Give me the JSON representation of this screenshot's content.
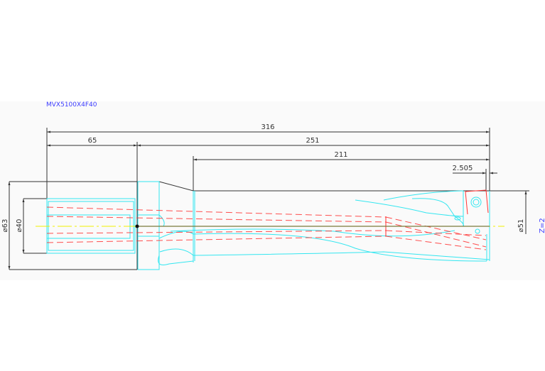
{
  "drawing": {
    "title": "MVX5100X4F40",
    "dimensions": {
      "overall_length": "316",
      "shank_length": "65",
      "body_length": "251",
      "flute_length": "211",
      "offset": "2.505",
      "shank_diameter_outer": "⌀63",
      "shank_diameter": "⌀40",
      "cutting_diameter": "⌀51"
    },
    "flutes": "Z=2"
  },
  "colors": {
    "outline": "#333333",
    "tool_body": "#33e6f0",
    "coolant_channel": "#ff3030",
    "centerline": "#f0f000",
    "annotation": "#3c3cff"
  }
}
